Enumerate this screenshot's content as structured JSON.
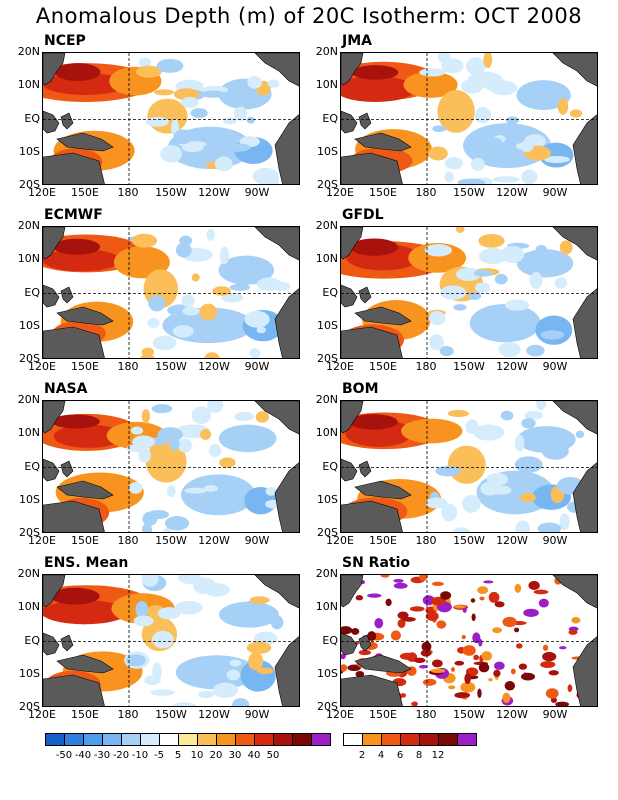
{
  "title": "Anomalous Depth (m) of 20C Isotherm: OCT 2008",
  "lat_labels": [
    "20N",
    "10N",
    "EQ",
    "10S",
    "20S"
  ],
  "lon_labels": [
    "120E",
    "150E",
    "180",
    "150W",
    "120W",
    "90W"
  ],
  "panels": [
    {
      "name": "NCEP",
      "kind": "anomaly"
    },
    {
      "name": "JMA",
      "kind": "anomaly"
    },
    {
      "name": "ECMWF",
      "kind": "anomaly"
    },
    {
      "name": "GFDL",
      "kind": "anomaly"
    },
    {
      "name": "NASA",
      "kind": "anomaly"
    },
    {
      "name": "BOM",
      "kind": "anomaly"
    },
    {
      "name": "ENS. Mean",
      "kind": "anomaly"
    },
    {
      "name": "SN Ratio",
      "kind": "ratio"
    }
  ],
  "anomaly_scale": {
    "labels": [
      "-50",
      "-40",
      "-30",
      "-20",
      "-10",
      "-5",
      "5",
      "10",
      "20",
      "30",
      "40",
      "50"
    ],
    "colors": [
      "#1560c8",
      "#2e7fde",
      "#4f9bec",
      "#78b6f2",
      "#a6d0f6",
      "#d4ecfb",
      "#ffffff",
      "#fde99a",
      "#fbbf5a",
      "#f7931e",
      "#ee5a16",
      "#d52a12",
      "#a8120c",
      "#7a0806",
      "#9b1ec8"
    ]
  },
  "ratio_scale": {
    "labels": [
      "2",
      "4",
      "6",
      "8",
      "12"
    ],
    "colors": [
      "#ffffff",
      "#f7931e",
      "#ee5a16",
      "#d52a12",
      "#a8120c",
      "#7a0806",
      "#9b1ec8"
    ]
  },
  "land_color": "#5a5a5a"
}
